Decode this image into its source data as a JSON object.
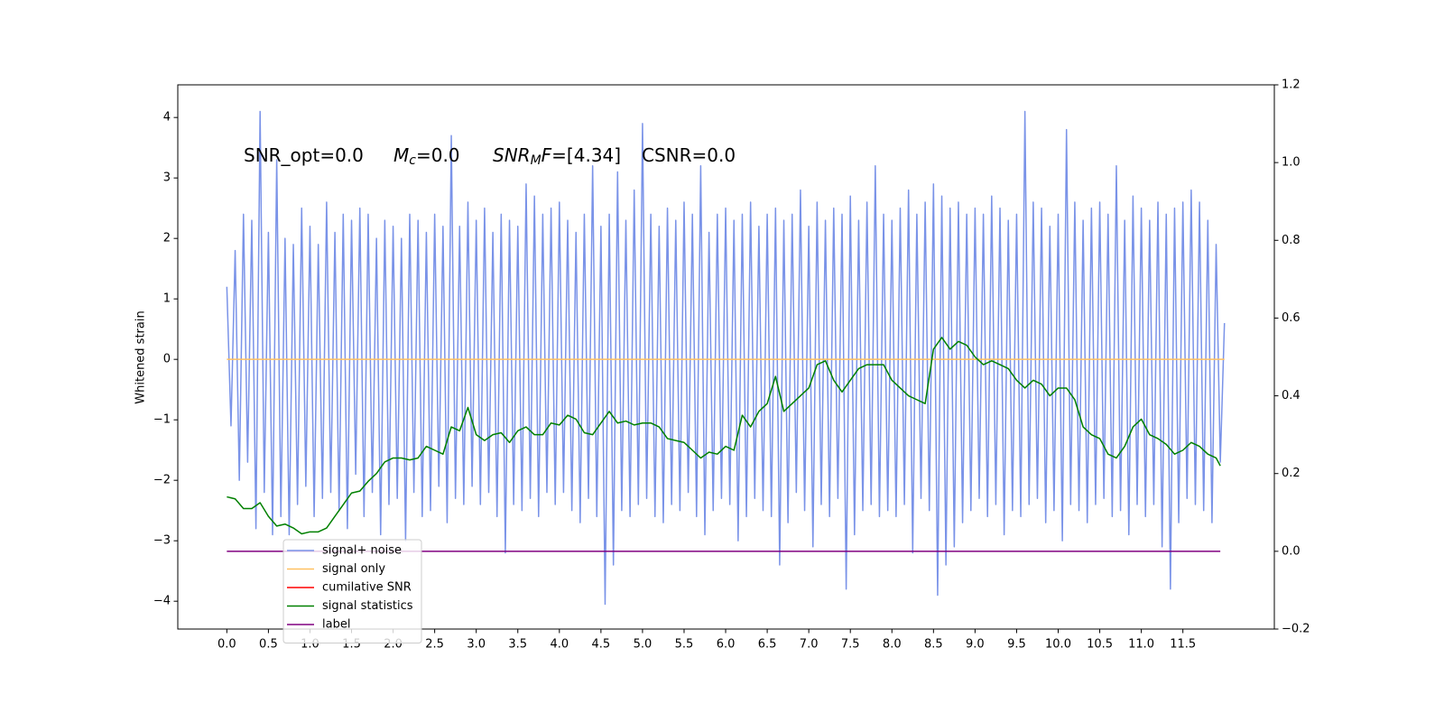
{
  "chart_data": {
    "type": "line",
    "y_label": "Whitened strain",
    "xlim": [
      -0.59,
      12.6
    ],
    "ylim": [
      -4.46,
      4.54
    ],
    "y2lim": [
      -0.2,
      1.2
    ],
    "xticks": [
      {
        "value": 0,
        "label": "0.0"
      },
      0.5,
      {
        "value": 1,
        "label": "1.0"
      },
      1.5,
      {
        "value": 2,
        "label": "2.0"
      },
      2.5,
      {
        "value": 3,
        "label": "3.0"
      },
      3.5,
      {
        "value": 4,
        "label": "4.0"
      },
      4.5,
      {
        "value": 5,
        "label": "5.0"
      },
      5.5,
      {
        "value": 6,
        "label": "6.0"
      },
      6.5,
      {
        "value": 7,
        "label": "7.0"
      },
      7.5,
      {
        "value": 8,
        "label": "8.0"
      },
      8.5,
      {
        "value": 9,
        "label": "9.0"
      },
      9.5,
      {
        "value": 10,
        "label": "10.0"
      },
      10.5,
      {
        "value": 11,
        "label": "11.0"
      },
      11.5
    ],
    "yticks": [
      {
        "value": -4,
        "label": "−4"
      },
      {
        "value": -3,
        "label": "−3"
      },
      {
        "value": -2,
        "label": "−2"
      },
      {
        "value": -1,
        "label": "−1"
      },
      0,
      1,
      2,
      3,
      4
    ],
    "y2ticks": [
      {
        "value": -0.2,
        "label": "−0.2"
      },
      {
        "value": 0,
        "label": "0.0"
      },
      0.2,
      0.4,
      0.6,
      0.8,
      {
        "value": 1,
        "label": "1.0"
      },
      1.2
    ],
    "annotations": [
      [
        {
          "text": "SNR_opt=0.0"
        }
      ],
      [
        {
          "text": "M",
          "style": "italic"
        },
        {
          "text": "c",
          "style": "italic-sub"
        },
        {
          "text": "=0.0"
        }
      ],
      [
        {
          "text": "SNR",
          "style": "italic"
        },
        {
          "text": "M",
          "style": "italic-sub"
        },
        {
          "text": "F",
          "style": "italic"
        },
        {
          "text": "=[4.34]"
        }
      ],
      [
        {
          "text": "CSNR=0.0"
        }
      ]
    ],
    "series": [
      {
        "name": "signal+ noise",
        "color": "#7a93e8",
        "axis": "y",
        "x": [
          0,
          0.05,
          0.1,
          0.15,
          0.2,
          0.25,
          0.3,
          0.35,
          0.4,
          0.45,
          0.5,
          0.55,
          0.6,
          0.65,
          0.7,
          0.75,
          0.8,
          0.85,
          0.9,
          0.95,
          1,
          1.05,
          1.1,
          1.15,
          1.2,
          1.25,
          1.3,
          1.35,
          1.4,
          1.45,
          1.5,
          1.55,
          1.6,
          1.65,
          1.7,
          1.75,
          1.8,
          1.85,
          1.9,
          1.95,
          2,
          2.05,
          2.1,
          2.15,
          2.2,
          2.25,
          2.3,
          2.35,
          2.4,
          2.45,
          2.5,
          2.55,
          2.6,
          2.65,
          2.7,
          2.75,
          2.8,
          2.85,
          2.9,
          2.95,
          3,
          3.05,
          3.1,
          3.15,
          3.2,
          3.25,
          3.3,
          3.35,
          3.4,
          3.45,
          3.5,
          3.55,
          3.6,
          3.65,
          3.7,
          3.75,
          3.8,
          3.85,
          3.9,
          3.95,
          4,
          4.05,
          4.1,
          4.15,
          4.2,
          4.25,
          4.3,
          4.35,
          4.4,
          4.45,
          4.5,
          4.55,
          4.6,
          4.65,
          4.7,
          4.75,
          4.8,
          4.85,
          4.9,
          4.95,
          5,
          5.05,
          5.1,
          5.15,
          5.2,
          5.25,
          5.3,
          5.35,
          5.4,
          5.45,
          5.5,
          5.55,
          5.6,
          5.65,
          5.7,
          5.75,
          5.8,
          5.85,
          5.9,
          5.95,
          6,
          6.05,
          6.1,
          6.15,
          6.2,
          6.25,
          6.3,
          6.35,
          6.4,
          6.45,
          6.5,
          6.55,
          6.6,
          6.65,
          6.7,
          6.75,
          6.8,
          6.85,
          6.9,
          6.95,
          7,
          7.05,
          7.1,
          7.15,
          7.2,
          7.25,
          7.3,
          7.35,
          7.4,
          7.45,
          7.5,
          7.55,
          7.6,
          7.65,
          7.7,
          7.75,
          7.8,
          7.85,
          7.9,
          7.95,
          8,
          8.05,
          8.1,
          8.15,
          8.2,
          8.25,
          8.3,
          8.35,
          8.4,
          8.45,
          8.5,
          8.55,
          8.6,
          8.65,
          8.7,
          8.75,
          8.8,
          8.85,
          8.9,
          8.95,
          9,
          9.05,
          9.1,
          9.15,
          9.2,
          9.25,
          9.3,
          9.35,
          9.4,
          9.45,
          9.5,
          9.55,
          9.6,
          9.65,
          9.7,
          9.75,
          9.8,
          9.85,
          9.9,
          9.95,
          10,
          10.05,
          10.1,
          10.15,
          10.2,
          10.25,
          10.3,
          10.35,
          10.4,
          10.45,
          10.5,
          10.55,
          10.6,
          10.65,
          10.7,
          10.75,
          10.8,
          10.85,
          10.9,
          10.95,
          11,
          11.05,
          11.1,
          11.15,
          11.2,
          11.25,
          11.3,
          11.35,
          11.4,
          11.45,
          11.5,
          11.55,
          11.6,
          11.65,
          11.7,
          11.75,
          11.8,
          11.85,
          11.9,
          11.95,
          12
        ],
        "values": [
          1.2,
          -1.1,
          1.8,
          -2.0,
          2.4,
          -1.7,
          2.3,
          -2.8,
          4.1,
          -2.2,
          2.1,
          -2.9,
          3.3,
          -2.6,
          2.0,
          -2.9,
          1.9,
          -2.4,
          2.5,
          -2.1,
          2.2,
          -2.6,
          1.9,
          -2.3,
          2.6,
          -2.2,
          2.1,
          -2.5,
          2.4,
          -2.8,
          2.3,
          -1.9,
          2.5,
          -2.6,
          2.4,
          -2.2,
          2.0,
          -2.9,
          2.3,
          -2.4,
          2.2,
          -2.3,
          2.0,
          -3.0,
          2.4,
          -2.2,
          2.3,
          -2.6,
          2.1,
          -2.5,
          2.4,
          -2.1,
          2.2,
          -2.7,
          3.7,
          -2.3,
          2.2,
          -2.4,
          2.6,
          -2.1,
          2.3,
          -2.4,
          2.5,
          -2.2,
          2.1,
          -2.6,
          2.4,
          -3.2,
          2.3,
          -2.4,
          2.2,
          -2.5,
          2.9,
          -2.3,
          2.7,
          -2.6,
          2.4,
          -2.2,
          2.5,
          -2.4,
          2.6,
          -2.2,
          2.3,
          -2.5,
          2.1,
          -2.7,
          2.4,
          -2.3,
          3.2,
          -2.6,
          2.2,
          -4.05,
          2.4,
          -3.4,
          3.1,
          -2.5,
          2.3,
          -2.6,
          2.8,
          -2.4,
          3.9,
          -2.3,
          2.4,
          -2.6,
          2.2,
          -2.7,
          2.5,
          -2.4,
          2.3,
          -2.5,
          2.6,
          -2.2,
          2.4,
          -2.6,
          3.2,
          -2.9,
          2.1,
          -2.5,
          2.4,
          -2.3,
          2.5,
          -2.4,
          2.3,
          -3.0,
          2.4,
          -2.6,
          2.6,
          -2.3,
          2.2,
          -2.5,
          2.4,
          -2.6,
          2.5,
          -3.4,
          2.3,
          -2.7,
          2.4,
          -2.2,
          2.8,
          -2.5,
          2.2,
          -3.1,
          2.6,
          -2.4,
          2.3,
          -2.6,
          2.5,
          -2.3,
          2.4,
          -3.8,
          2.7,
          -2.9,
          2.3,
          -2.5,
          2.6,
          -2.4,
          3.2,
          -2.6,
          2.4,
          -2.5,
          2.3,
          -2.6,
          2.5,
          -2.4,
          2.8,
          -3.2,
          2.4,
          -2.3,
          2.6,
          -2.5,
          2.9,
          -3.9,
          2.7,
          -3.4,
          2.5,
          -3.1,
          2.6,
          -2.7,
          2.4,
          -2.5,
          2.5,
          -2.3,
          2.4,
          -2.6,
          2.7,
          -2.4,
          2.5,
          -2.9,
          2.3,
          -2.5,
          2.4,
          -2.6,
          4.1,
          -2.4,
          2.6,
          -2.3,
          2.5,
          -2.7,
          2.2,
          -2.5,
          2.4,
          -3.0,
          3.8,
          -2.4,
          2.6,
          -2.5,
          2.3,
          -2.7,
          2.5,
          -2.4,
          2.6,
          -2.3,
          2.4,
          -2.6,
          3.2,
          -2.5,
          2.3,
          -2.9,
          2.7,
          -2.4,
          2.5,
          -2.6,
          2.3,
          -2.4,
          2.6,
          -3.1,
          2.4,
          -3.8,
          2.5,
          -2.7,
          2.6,
          -2.3,
          2.8,
          -2.4,
          2.6,
          -2.5,
          2.3,
          -2.7,
          1.9,
          -1.7,
          0.6
        ]
      },
      {
        "name": "signal only",
        "color": "#ffc060",
        "axis": "y",
        "x": [
          0,
          12
        ],
        "values": [
          0,
          0
        ]
      },
      {
        "name": "cumilative SNR",
        "color": "#ff0000",
        "axis": "y2",
        "x": [],
        "values": []
      },
      {
        "name": "signal statistics",
        "color": "#008000",
        "axis": "y2",
        "x": [
          0,
          0.1,
          0.2,
          0.3,
          0.4,
          0.5,
          0.6,
          0.7,
          0.8,
          0.9,
          1,
          1.1,
          1.2,
          1.3,
          1.4,
          1.5,
          1.6,
          1.7,
          1.8,
          1.9,
          2,
          2.1,
          2.2,
          2.3,
          2.4,
          2.5,
          2.6,
          2.7,
          2.8,
          2.9,
          3,
          3.1,
          3.2,
          3.3,
          3.4,
          3.5,
          3.6,
          3.7,
          3.8,
          3.9,
          4,
          4.1,
          4.2,
          4.3,
          4.4,
          4.5,
          4.6,
          4.7,
          4.8,
          4.9,
          5,
          5.1,
          5.2,
          5.3,
          5.4,
          5.5,
          5.6,
          5.7,
          5.8,
          5.9,
          6,
          6.1,
          6.2,
          6.3,
          6.4,
          6.5,
          6.6,
          6.7,
          6.8,
          6.9,
          7,
          7.1,
          7.2,
          7.3,
          7.4,
          7.5,
          7.6,
          7.7,
          7.8,
          7.9,
          8,
          8.1,
          8.2,
          8.3,
          8.4,
          8.5,
          8.6,
          8.7,
          8.8,
          8.9,
          9,
          9.1,
          9.2,
          9.3,
          9.4,
          9.5,
          9.6,
          9.7,
          9.8,
          9.9,
          10,
          10.1,
          10.2,
          10.3,
          10.4,
          10.5,
          10.6,
          10.7,
          10.8,
          10.9,
          11,
          11.1,
          11.2,
          11.3,
          11.4,
          11.5,
          11.6,
          11.7,
          11.8,
          11.9,
          11.95
        ],
        "values": [
          0.14,
          0.135,
          0.11,
          0.11,
          0.125,
          0.09,
          0.065,
          0.07,
          0.06,
          0.045,
          0.05,
          0.05,
          0.06,
          0.09,
          0.12,
          0.15,
          0.155,
          0.18,
          0.2,
          0.23,
          0.24,
          0.24,
          0.235,
          0.24,
          0.27,
          0.26,
          0.25,
          0.32,
          0.31,
          0.37,
          0.3,
          0.285,
          0.3,
          0.305,
          0.28,
          0.31,
          0.32,
          0.3,
          0.3,
          0.33,
          0.325,
          0.35,
          0.34,
          0.305,
          0.3,
          0.33,
          0.36,
          0.33,
          0.335,
          0.325,
          0.33,
          0.33,
          0.32,
          0.29,
          0.285,
          0.28,
          0.26,
          0.24,
          0.255,
          0.25,
          0.27,
          0.26,
          0.35,
          0.32,
          0.36,
          0.38,
          0.45,
          0.36,
          0.38,
          0.4,
          0.42,
          0.48,
          0.49,
          0.44,
          0.41,
          0.44,
          0.47,
          0.48,
          0.48,
          0.48,
          0.44,
          0.42,
          0.4,
          0.39,
          0.38,
          0.52,
          0.55,
          0.52,
          0.54,
          0.53,
          0.5,
          0.48,
          0.49,
          0.48,
          0.47,
          0.44,
          0.42,
          0.44,
          0.43,
          0.4,
          0.42,
          0.42,
          0.39,
          0.32,
          0.3,
          0.29,
          0.25,
          0.24,
          0.27,
          0.32,
          0.34,
          0.3,
          0.29,
          0.275,
          0.25,
          0.26,
          0.28,
          0.27,
          0.25,
          0.24,
          0.22
        ]
      },
      {
        "name": "label",
        "color": "#800080",
        "axis": "y2",
        "x": [
          0,
          11.95
        ],
        "values": [
          0,
          0
        ]
      }
    ]
  }
}
